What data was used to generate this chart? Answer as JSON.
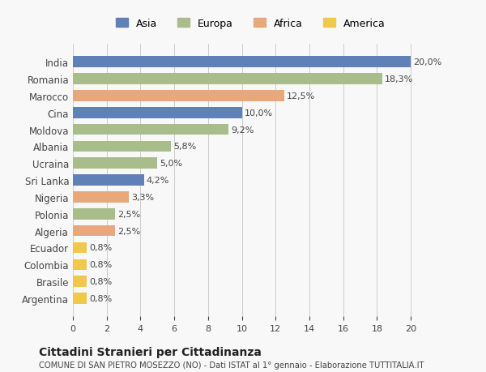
{
  "countries": [
    "India",
    "Romania",
    "Marocco",
    "Cina",
    "Moldova",
    "Albania",
    "Ucraina",
    "Sri Lanka",
    "Nigeria",
    "Polonia",
    "Algeria",
    "Ecuador",
    "Colombia",
    "Brasile",
    "Argentina"
  ],
  "values": [
    20.0,
    18.3,
    12.5,
    10.0,
    9.2,
    5.8,
    5.0,
    4.2,
    3.3,
    2.5,
    2.5,
    0.8,
    0.8,
    0.8,
    0.8
  ],
  "labels": [
    "20,0%",
    "18,3%",
    "12,5%",
    "10,0%",
    "9,2%",
    "5,8%",
    "5,0%",
    "4,2%",
    "3,3%",
    "2,5%",
    "2,5%",
    "0,8%",
    "0,8%",
    "0,8%",
    "0,8%"
  ],
  "continents": [
    "Asia",
    "Europa",
    "Africa",
    "Asia",
    "Europa",
    "Europa",
    "Europa",
    "Asia",
    "Africa",
    "Europa",
    "Africa",
    "America",
    "America",
    "America",
    "America"
  ],
  "colors": {
    "Asia": "#6080b8",
    "Europa": "#a8bc8c",
    "Africa": "#e8a87c",
    "America": "#f0c84c"
  },
  "legend_order": [
    "Asia",
    "Europa",
    "Africa",
    "America"
  ],
  "legend_colors": {
    "Asia": "#6080b8",
    "Europa": "#a8bc8c",
    "Africa": "#e8a87c",
    "America": "#f0c84c"
  },
  "xlim": [
    0,
    21
  ],
  "xticks": [
    0,
    2,
    4,
    6,
    8,
    10,
    12,
    14,
    16,
    18,
    20
  ],
  "title": "Cittadini Stranieri per Cittadinanza",
  "subtitle": "COMUNE DI SAN PIETRO MOSEZZO (NO) - Dati ISTAT al 1° gennaio - Elaborazione TUTTITALIA.IT",
  "background_color": "#f8f8f8",
  "bar_height": 0.65,
  "grid_color": "#cccccc"
}
